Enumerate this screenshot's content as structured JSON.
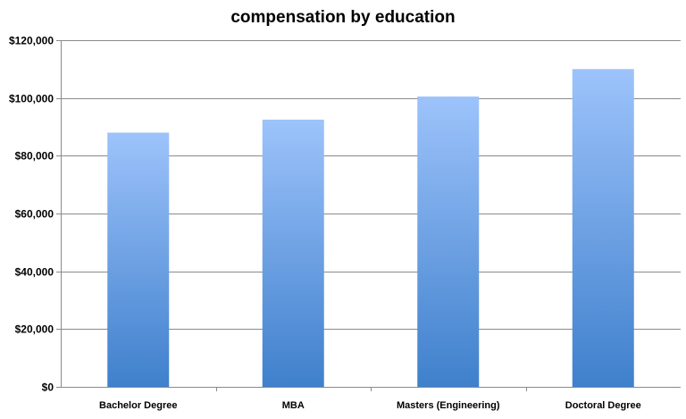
{
  "chart_data": {
    "type": "bar",
    "title": "compensation by education",
    "categories": [
      "Bachelor Degree",
      "MBA",
      "Masters (Engineering)",
      "Doctoral Degree"
    ],
    "values": [
      88000,
      92500,
      100500,
      110000
    ],
    "ylim": [
      0,
      120000
    ],
    "yticks": [
      0,
      20000,
      40000,
      60000,
      80000,
      100000,
      120000
    ],
    "ytick_labels": [
      "$0",
      "$20,000",
      "$40,000",
      "$60,000",
      "$80,000",
      "$100,000",
      "$120,000"
    ],
    "grid": true,
    "colors": {
      "bar_top": "#9dc3fb",
      "bar_bottom": "#3f80cc",
      "grid": "#8a8a8a"
    }
  }
}
